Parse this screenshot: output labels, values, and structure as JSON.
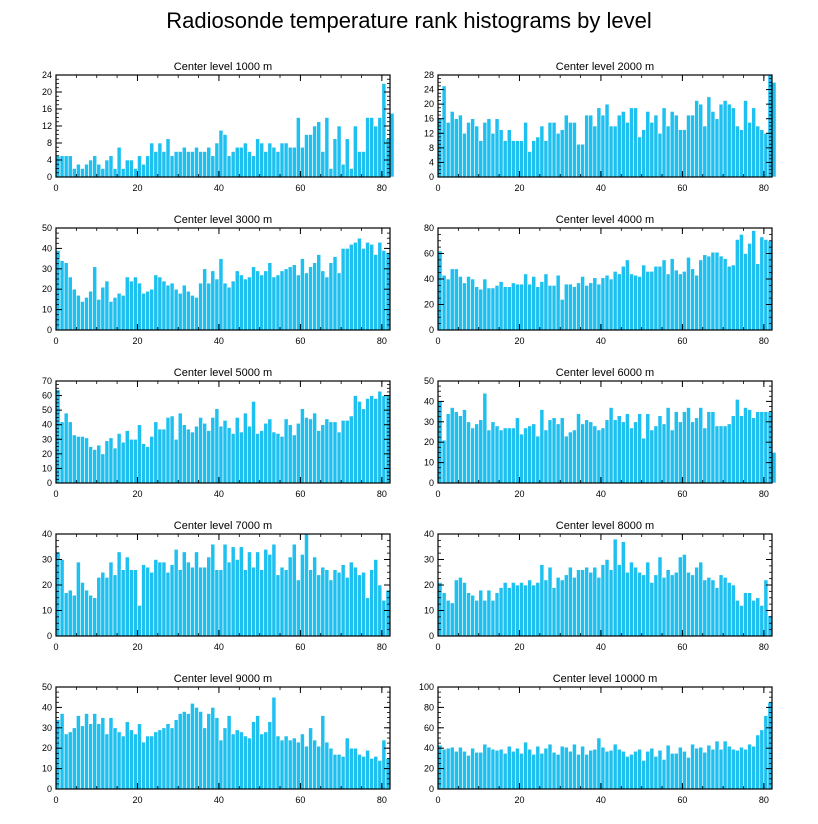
{
  "title": "Radiosonde temperature rank histograms by level",
  "colors": {
    "bar": "#1ec0f0",
    "bar_edge": "#ffffff",
    "axis": "#000000"
  },
  "chart_data": [
    {
      "type": "bar",
      "title": "Center level 1000 m",
      "xlim": [
        0,
        82
      ],
      "ylim": [
        0,
        24
      ],
      "xticks": [
        0,
        20,
        40,
        60,
        80
      ],
      "yticks": [
        0,
        4,
        8,
        12,
        16,
        20,
        24
      ],
      "values": [
        5,
        5,
        5,
        5,
        2,
        3,
        2,
        3,
        4,
        5,
        3,
        2,
        4,
        5,
        2,
        7,
        2,
        4,
        4,
        2,
        5,
        3,
        5,
        8,
        6,
        8,
        6,
        9,
        5,
        6,
        6,
        7,
        6,
        6,
        7,
        6,
        6,
        7,
        5,
        8,
        11,
        10,
        5,
        6,
        7,
        7,
        8,
        6,
        5,
        9,
        8,
        6,
        8,
        7,
        6,
        8,
        8,
        7,
        7,
        14,
        7,
        10,
        10,
        12,
        13,
        6,
        14,
        2,
        9,
        12,
        3,
        9,
        2,
        12,
        6,
        6,
        14,
        14,
        12,
        14,
        22,
        9,
        15
      ]
    },
    {
      "type": "bar",
      "title": "Center level 2000 m",
      "xlim": [
        0,
        82
      ],
      "ylim": [
        0,
        28
      ],
      "xticks": [
        0,
        20,
        40,
        60,
        80
      ],
      "yticks": [
        0,
        4,
        8,
        12,
        16,
        20,
        24,
        28
      ],
      "values": [
        16,
        25,
        15,
        18,
        16,
        17,
        12,
        15,
        16,
        14,
        10,
        15,
        16,
        12,
        16,
        13,
        10,
        13,
        10,
        10,
        10,
        15,
        7,
        10,
        11,
        14,
        10,
        15,
        15,
        12,
        13,
        17,
        15,
        15,
        9,
        9,
        17,
        17,
        14,
        19,
        17,
        20,
        14,
        14,
        17,
        18,
        15,
        19,
        19,
        11,
        13,
        18,
        15,
        17,
        12,
        19,
        14,
        18,
        17,
        13,
        13,
        17,
        17,
        21,
        20,
        14,
        22,
        18,
        16,
        20,
        21,
        20,
        19,
        14,
        13,
        21,
        15,
        19,
        14,
        13,
        12,
        28,
        26
      ]
    },
    {
      "type": "bar",
      "title": "Center level 3000 m",
      "xlim": [
        0,
        82
      ],
      "ylim": [
        0,
        50
      ],
      "xticks": [
        0,
        20,
        40,
        60,
        80
      ],
      "yticks": [
        0,
        10,
        20,
        30,
        40,
        50
      ],
      "values": [
        39,
        34,
        33,
        26,
        20,
        17,
        14,
        16,
        19,
        31,
        15,
        21,
        24,
        14,
        16,
        18,
        17,
        26,
        24,
        26,
        23,
        18,
        19,
        20,
        27,
        26,
        24,
        22,
        23,
        20,
        18,
        22,
        19,
        17,
        16,
        23,
        30,
        23,
        29,
        25,
        35,
        23,
        21,
        24,
        29,
        27,
        25,
        26,
        31,
        29,
        27,
        29,
        33,
        26,
        27,
        29,
        30,
        31,
        32,
        27,
        35,
        28,
        31,
        33,
        37,
        29,
        26,
        33,
        36,
        28,
        40,
        40,
        42,
        43,
        45,
        40,
        43,
        42,
        37,
        43,
        39,
        38
      ]
    },
    {
      "type": "bar",
      "title": "Center level 4000 m",
      "xlim": [
        0,
        82
      ],
      "ylim": [
        0,
        80
      ],
      "xticks": [
        0,
        20,
        40,
        60,
        80
      ],
      "yticks": [
        0,
        20,
        40,
        60,
        80
      ],
      "values": [
        62,
        43,
        40,
        48,
        48,
        42,
        37,
        42,
        40,
        34,
        32,
        40,
        33,
        33,
        35,
        38,
        34,
        34,
        37,
        36,
        36,
        44,
        36,
        42,
        34,
        38,
        44,
        35,
        35,
        43,
        24,
        36,
        36,
        34,
        37,
        42,
        35,
        37,
        41,
        36,
        41,
        43,
        40,
        46,
        44,
        50,
        55,
        44,
        43,
        42,
        51,
        46,
        46,
        50,
        50,
        55,
        44,
        56,
        47,
        44,
        46,
        57,
        48,
        43,
        55,
        59,
        58,
        61,
        61,
        58,
        56,
        50,
        51,
        71,
        75,
        60,
        68,
        78,
        52,
        73,
        71,
        70
      ]
    },
    {
      "type": "bar",
      "title": "Center level 5000 m",
      "xlim": [
        0,
        82
      ],
      "ylim": [
        0,
        70
      ],
      "xticks": [
        0,
        20,
        40,
        60,
        80
      ],
      "yticks": [
        0,
        10,
        20,
        30,
        40,
        50,
        60,
        70
      ],
      "values": [
        64,
        42,
        48,
        42,
        33,
        32,
        32,
        31,
        25,
        23,
        26,
        20,
        29,
        31,
        24,
        34,
        28,
        36,
        30,
        30,
        40,
        27,
        25,
        32,
        42,
        37,
        37,
        45,
        46,
        30,
        48,
        40,
        37,
        35,
        39,
        45,
        41,
        36,
        45,
        51,
        39,
        43,
        38,
        34,
        45,
        35,
        48,
        39,
        56,
        34,
        36,
        41,
        44,
        35,
        34,
        32,
        44,
        40,
        33,
        41,
        51,
        45,
        44,
        48,
        36,
        40,
        44,
        42,
        42,
        35,
        43,
        43,
        46,
        60,
        56,
        51,
        58,
        60,
        58,
        63,
        60,
        60
      ]
    },
    {
      "type": "bar",
      "title": "Center level 6000 m",
      "xlim": [
        0,
        82
      ],
      "ylim": [
        0,
        50
      ],
      "xticks": [
        0,
        20,
        40,
        60,
        80
      ],
      "yticks": [
        0,
        10,
        20,
        30,
        40,
        50
      ],
      "values": [
        40,
        21,
        34,
        37,
        35,
        33,
        36,
        30,
        27,
        29,
        31,
        44,
        26,
        30,
        28,
        26,
        27,
        27,
        27,
        32,
        24,
        27,
        28,
        29,
        23,
        36,
        26,
        31,
        32,
        29,
        32,
        23,
        25,
        26,
        34,
        29,
        31,
        30,
        28,
        26,
        27,
        31,
        37,
        31,
        33,
        30,
        34,
        27,
        30,
        34,
        22,
        34,
        26,
        28,
        33,
        29,
        37,
        26,
        35,
        30,
        35,
        37,
        30,
        32,
        37,
        27,
        35,
        35,
        28,
        28,
        28,
        29,
        33,
        41,
        33,
        37,
        36,
        32,
        35,
        35,
        35,
        35,
        15
      ]
    },
    {
      "type": "bar",
      "title": "Center level 7000 m",
      "xlim": [
        0,
        82
      ],
      "ylim": [
        0,
        40
      ],
      "xticks": [
        0,
        20,
        40,
        60,
        80
      ],
      "yticks": [
        0,
        10,
        20,
        30,
        40
      ],
      "values": [
        33,
        30,
        17,
        18,
        16,
        29,
        21,
        18,
        16,
        15,
        23,
        25,
        23,
        29,
        24,
        33,
        26,
        31,
        26,
        26,
        12,
        28,
        27,
        25,
        30,
        29,
        29,
        25,
        28,
        34,
        26,
        33,
        29,
        27,
        33,
        27,
        27,
        31,
        36,
        26,
        26,
        36,
        29,
        35,
        30,
        35,
        26,
        33,
        27,
        33,
        26,
        34,
        32,
        36,
        24,
        27,
        26,
        31,
        36,
        22,
        32,
        40,
        26,
        31,
        24,
        27,
        26,
        22,
        26,
        25,
        28,
        23,
        29,
        27,
        24,
        25,
        15,
        26,
        30,
        20,
        14,
        18
      ]
    },
    {
      "type": "bar",
      "title": "Center level 8000 m",
      "xlim": [
        0,
        82
      ],
      "ylim": [
        0,
        40
      ],
      "xticks": [
        0,
        20,
        40,
        60,
        80
      ],
      "yticks": [
        0,
        10,
        20,
        30,
        40
      ],
      "values": [
        21,
        17,
        14,
        13,
        22,
        23,
        21,
        17,
        16,
        14,
        18,
        14,
        18,
        14,
        17,
        19,
        21,
        19,
        21,
        20,
        21,
        20,
        22,
        20,
        21,
        28,
        22,
        27,
        19,
        23,
        22,
        24,
        27,
        23,
        26,
        26,
        27,
        25,
        27,
        23,
        28,
        30,
        26,
        38,
        28,
        37,
        25,
        29,
        27,
        25,
        24,
        29,
        21,
        24,
        31,
        23,
        26,
        24,
        25,
        31,
        32,
        25,
        24,
        27,
        29,
        22,
        23,
        22,
        19,
        24,
        23,
        21,
        20,
        14,
        12,
        17,
        17,
        14,
        15,
        12,
        22,
        8
      ]
    },
    {
      "type": "bar",
      "title": "Center level 9000 m",
      "xlim": [
        0,
        82
      ],
      "ylim": [
        0,
        50
      ],
      "xticks": [
        0,
        20,
        40,
        60,
        80
      ],
      "yticks": [
        0,
        10,
        20,
        30,
        40,
        50
      ],
      "values": [
        34,
        37,
        27,
        28,
        30,
        36,
        31,
        37,
        32,
        37,
        32,
        35,
        27,
        35,
        30,
        28,
        26,
        33,
        29,
        27,
        32,
        23,
        26,
        26,
        28,
        29,
        30,
        32,
        30,
        34,
        37,
        38,
        37,
        42,
        40,
        38,
        30,
        37,
        40,
        35,
        24,
        30,
        36,
        27,
        29,
        28,
        26,
        25,
        33,
        36,
        27,
        28,
        33,
        45,
        26,
        24,
        26,
        24,
        25,
        23,
        27,
        21,
        30,
        24,
        21,
        36,
        23,
        20,
        17,
        17,
        16,
        25,
        20,
        20,
        17,
        16,
        19,
        15,
        16,
        14,
        24,
        15
      ]
    },
    {
      "type": "bar",
      "title": "Center level 10000 m",
      "xlim": [
        0,
        82
      ],
      "ylim": [
        0,
        100
      ],
      "xticks": [
        0,
        20,
        40,
        60,
        80
      ],
      "yticks": [
        0,
        20,
        40,
        60,
        80,
        100
      ],
      "values": [
        43,
        39,
        40,
        41,
        37,
        41,
        37,
        33,
        40,
        36,
        36,
        44,
        41,
        39,
        38,
        39,
        35,
        42,
        37,
        40,
        35,
        46,
        39,
        34,
        42,
        35,
        40,
        44,
        36,
        34,
        42,
        41,
        37,
        44,
        34,
        42,
        34,
        38,
        39,
        50,
        41,
        37,
        38,
        44,
        39,
        37,
        32,
        34,
        37,
        39,
        28,
        37,
        40,
        32,
        38,
        29,
        43,
        35,
        35,
        41,
        37,
        31,
        44,
        40,
        41,
        36,
        43,
        39,
        47,
        39,
        47,
        42,
        39,
        38,
        41,
        39,
        44,
        42,
        53,
        58,
        72,
        85
      ]
    }
  ]
}
